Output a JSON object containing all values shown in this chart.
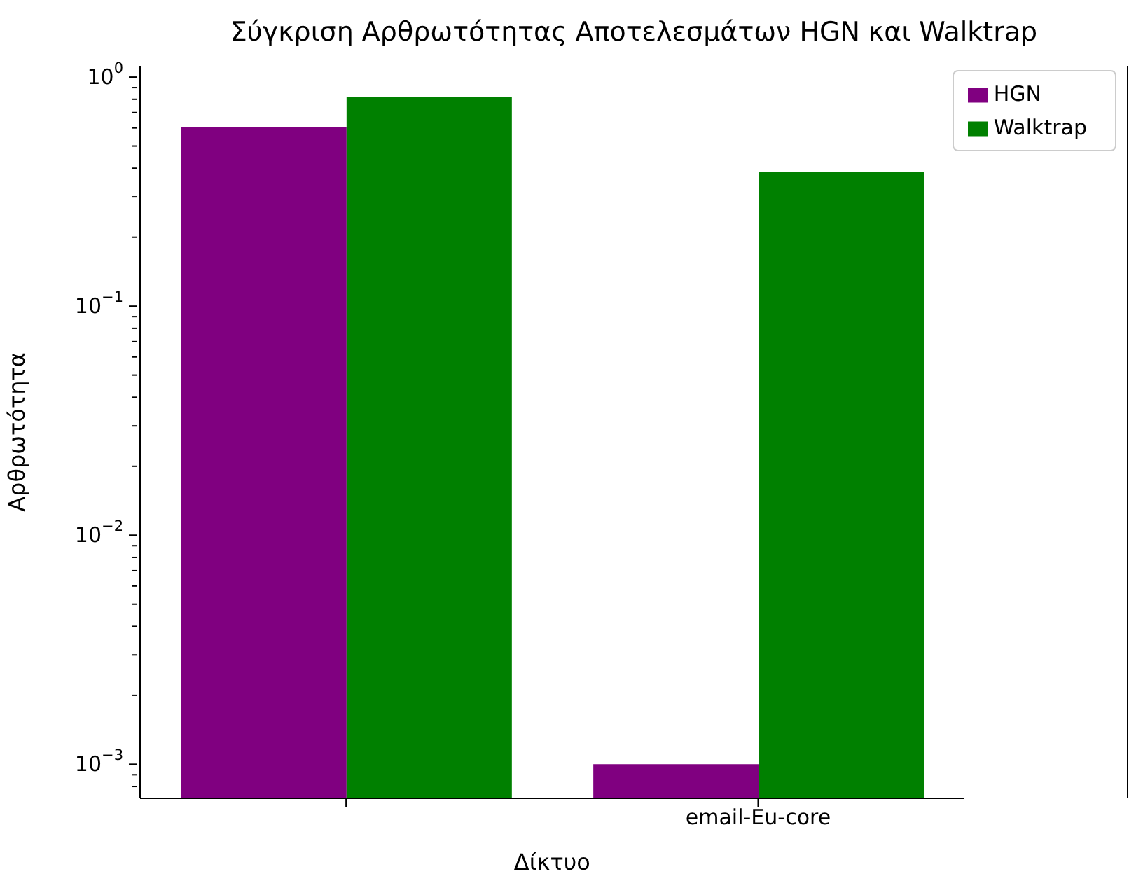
{
  "chart_data": {
    "type": "bar",
    "title": "Σύγκριση Αρθρωτότητας Αποτελεσμάτων HGN και Walktrap",
    "xlabel": "Δίκτυο",
    "ylabel": "Αρθρωτότητα",
    "categories": [
      null,
      "email-Eu-core"
    ],
    "series": [
      {
        "name": "HGN",
        "color": "#800080",
        "values": [
          0.605,
          0.001
        ]
      },
      {
        "name": "Walktrap",
        "color": "#008000",
        "values": [
          0.82,
          0.386
        ]
      }
    ],
    "log": true,
    "ylim": [
      0.00071,
      1.12
    ],
    "yticks": [
      {
        "value": 0.0008,
        "label": null
      },
      {
        "value": 0.0009,
        "label": null
      },
      {
        "value": 0.001,
        "label": "10$^{−3}$"
      },
      {
        "value": 0.002,
        "label": null
      },
      {
        "value": 0.003,
        "label": null
      },
      {
        "value": 0.004,
        "label": null
      },
      {
        "value": 0.005,
        "label": null
      },
      {
        "value": 0.006,
        "label": null
      },
      {
        "value": 0.007,
        "label": null
      },
      {
        "value": 0.008,
        "label": null
      },
      {
        "value": 0.009,
        "label": null
      },
      {
        "value": 0.01,
        "label": "10$^{−2}$"
      },
      {
        "value": 0.02,
        "label": null
      },
      {
        "value": 0.03,
        "label": null
      },
      {
        "value": 0.04,
        "label": null
      },
      {
        "value": 0.05,
        "label": null
      },
      {
        "value": 0.06,
        "label": null
      },
      {
        "value": 0.07,
        "label": null
      },
      {
        "value": 0.08,
        "label": null
      },
      {
        "value": 0.09,
        "label": null
      },
      {
        "value": 0.1,
        "label": "10$^{−1}$"
      },
      {
        "value": 0.2,
        "label": null
      },
      {
        "value": 0.3,
        "label": null
      },
      {
        "value": 0.4,
        "label": null
      },
      {
        "value": 0.5,
        "label": null
      },
      {
        "value": 0.6,
        "label": null
      },
      {
        "value": 0.7,
        "label": null
      },
      {
        "value": 0.8,
        "label": null
      },
      {
        "value": 0.9,
        "label": null
      },
      {
        "value": 1,
        "label": "10$^{0}$"
      }
    ],
    "grid": false,
    "legend": "top right"
  }
}
